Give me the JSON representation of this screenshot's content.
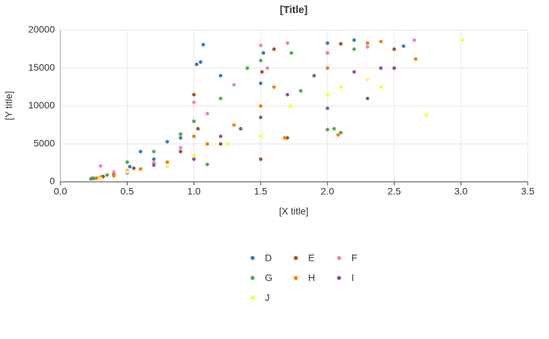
{
  "chart_data": {
    "type": "scatter",
    "title": "[Title]",
    "x_label": "[X title]",
    "y_label": "[Y title]",
    "xlim": [
      0,
      3.5
    ],
    "xticks": [
      {
        "value": 0,
        "label": "0.0"
      },
      0.5,
      {
        "value": 1,
        "label": "1.0"
      },
      1.5,
      {
        "value": 2,
        "label": "2.0"
      },
      2.5,
      {
        "value": 3,
        "label": "3.0"
      },
      3.5
    ],
    "ylim": [
      0,
      20000
    ],
    "yticks": [
      0,
      5000,
      10000,
      15000,
      20000
    ],
    "grid": true,
    "legend": "bottom",
    "series": [
      {
        "name": "D",
        "color": "#377eb8",
        "x": [
          0.23,
          0.3,
          0.4,
          0.52,
          0.6,
          0.7,
          0.8,
          0.9,
          1.0,
          1.02,
          1.05,
          1.07,
          1.1,
          1.2,
          1.5,
          1.52,
          2.0,
          2.2,
          2.57
        ],
        "values": [
          400,
          600,
          1000,
          2000,
          4000,
          3000,
          5300,
          5800,
          6000,
          15500,
          15800,
          18100,
          9000,
          14000,
          13000,
          17000,
          18300,
          18700,
          17900
        ]
      },
      {
        "name": "E",
        "color": "#a65628",
        "x": [
          0.25,
          0.32,
          0.4,
          0.55,
          0.7,
          0.9,
          1.0,
          1.03,
          1.2,
          1.5,
          1.51,
          1.6,
          1.7,
          2.0,
          2.1,
          2.5
        ],
        "values": [
          450,
          700,
          900,
          1800,
          2500,
          4000,
          11500,
          7000,
          5000,
          3000,
          14500,
          17500,
          5800,
          17000,
          18200,
          17500
        ]
      },
      {
        "name": "F",
        "color": "#f781bf",
        "x": [
          0.3,
          0.4,
          0.5,
          0.7,
          0.9,
          1.0,
          1.1,
          1.3,
          1.5,
          1.55,
          1.7,
          2.0,
          2.3,
          2.65
        ],
        "values": [
          2100,
          1300,
          1500,
          2500,
          4500,
          10500,
          9000,
          12800,
          18000,
          15000,
          18300,
          17000,
          17800,
          18700
        ]
      },
      {
        "name": "G",
        "color": "#4daf4a",
        "x": [
          0.24,
          0.35,
          0.5,
          0.7,
          0.9,
          1.0,
          1.1,
          1.2,
          1.4,
          1.5,
          1.73,
          1.8,
          2.0,
          2.05,
          2.1,
          2.2
        ],
        "values": [
          500,
          900,
          2600,
          4000,
          6300,
          8000,
          2300,
          11000,
          15000,
          16000,
          17000,
          12000,
          6900,
          7000,
          6500,
          17500
        ]
      },
      {
        "name": "H",
        "color": "#ff7f00",
        "x": [
          0.27,
          0.4,
          0.6,
          0.8,
          1.0,
          1.1,
          1.3,
          1.5,
          1.6,
          1.68,
          2.0,
          2.08,
          2.3,
          2.4,
          2.66
        ],
        "values": [
          500,
          800,
          1700,
          2600,
          6000,
          5000,
          7500,
          10000,
          12500,
          5800,
          15000,
          6200,
          18300,
          18500,
          16200
        ]
      },
      {
        "name": "I",
        "color": "#984ea3",
        "x": [
          0.3,
          0.5,
          0.7,
          1.0,
          1.2,
          1.35,
          1.5,
          1.7,
          1.9,
          2.0,
          2.2,
          2.3,
          2.4,
          2.5
        ],
        "values": [
          600,
          1200,
          2200,
          3000,
          6000,
          7000,
          8500,
          11500,
          14000,
          9700,
          14500,
          11000,
          15000,
          15000
        ]
      },
      {
        "name": "J",
        "color": "#ffff33",
        "x": [
          0.3,
          0.5,
          0.8,
          1.0,
          1.25,
          1.5,
          1.72,
          2.0,
          2.1,
          2.3,
          2.4,
          2.74,
          3.01
        ],
        "values": [
          500,
          1300,
          2000,
          3500,
          5000,
          6000,
          10000,
          11500,
          12500,
          13500,
          12500,
          8800,
          18700
        ]
      }
    ]
  }
}
